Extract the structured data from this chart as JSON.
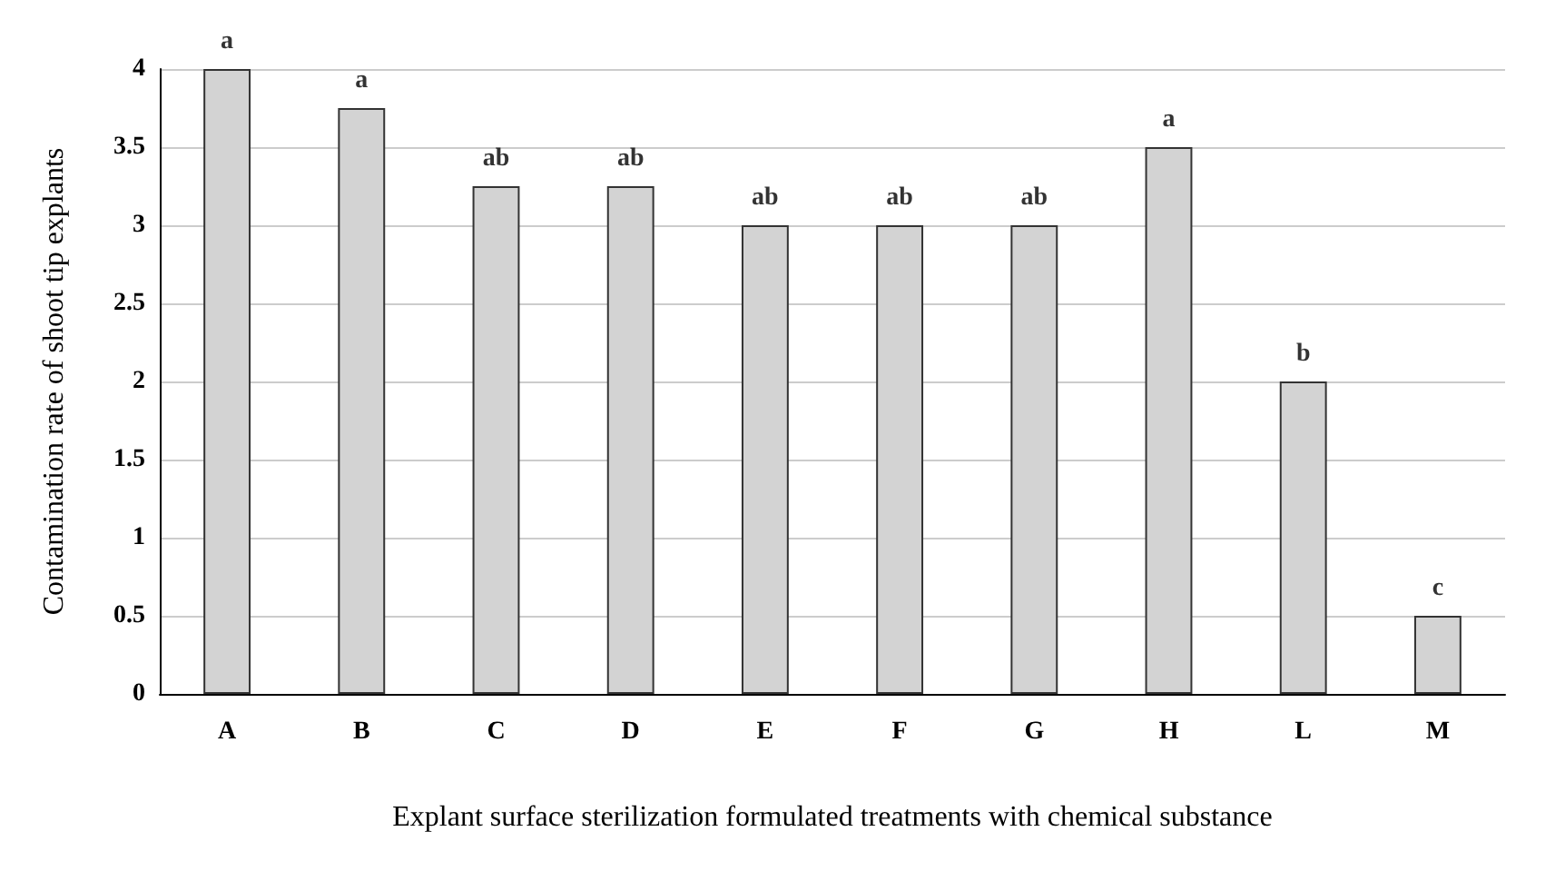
{
  "chart_data": {
    "type": "bar",
    "xlabel": "Explant surface sterilization formulated treatments with chemical substance",
    "ylabel": "Contamination rate of shoot tip explants",
    "categories": [
      "A",
      "B",
      "C",
      "D",
      "E",
      "F",
      "G",
      "H",
      "L",
      "M"
    ],
    "values": [
      4,
      3.75,
      3.25,
      3.25,
      3,
      3,
      3,
      3.5,
      2,
      0.5
    ],
    "color": "#d3d3d3",
    "ylim": [
      0,
      4
    ],
    "yticks": [
      0,
      0.5,
      1,
      1.5,
      2,
      2.5,
      3,
      3.5,
      4
    ],
    "grid": "y",
    "annotations": [
      {
        "text": "a",
        "x": "A",
        "y": 4
      },
      {
        "text": "a",
        "x": "B",
        "y": 3.75
      },
      {
        "text": "ab",
        "x": "C",
        "y": 3.25
      },
      {
        "text": "ab",
        "x": "D",
        "y": 3.25
      },
      {
        "text": "ab",
        "x": "E",
        "y": 3
      },
      {
        "text": "ab",
        "x": "F",
        "y": 3
      },
      {
        "text": "ab",
        "x": "G",
        "y": 3
      },
      {
        "text": "a",
        "x": "H",
        "y": 3.5
      },
      {
        "text": "b",
        "x": "L",
        "y": 2
      },
      {
        "text": "c",
        "x": "M",
        "y": 0.5
      }
    ]
  }
}
